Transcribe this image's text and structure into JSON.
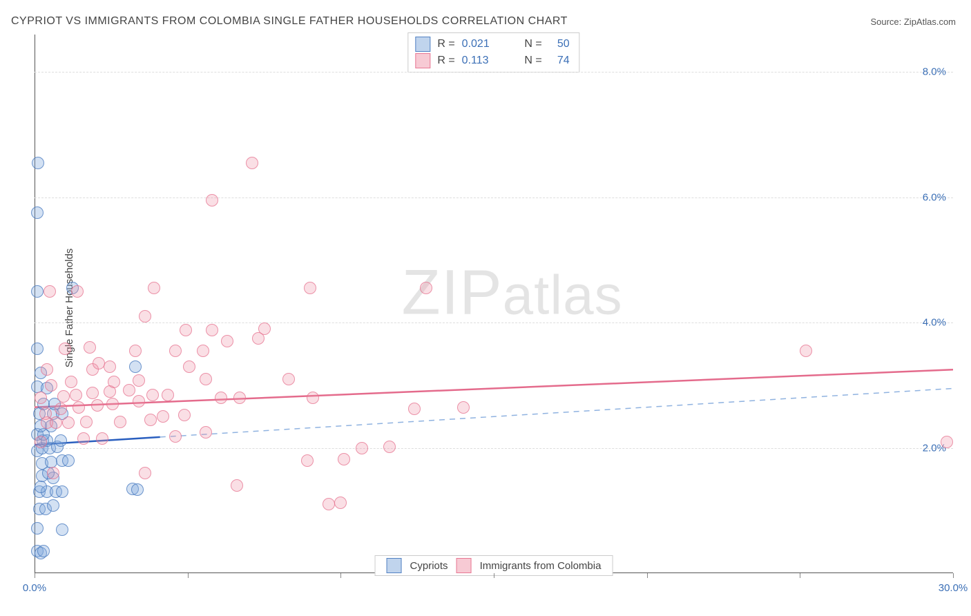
{
  "header": {
    "title": "CYPRIOT VS IMMIGRANTS FROM COLOMBIA SINGLE FATHER HOUSEHOLDS CORRELATION CHART",
    "source": "Source: ZipAtlas.com"
  },
  "watermark": {
    "part1": "ZIP",
    "part2": "atlas"
  },
  "chart": {
    "type": "scatter",
    "ylabel": "Single Father Households",
    "xlim": [
      0,
      30
    ],
    "ylim": [
      0,
      8.6
    ],
    "xtick_positions": [
      0,
      5,
      10,
      15,
      20,
      25,
      30
    ],
    "xtick_labels": {
      "0": "0.0%",
      "30": "30.0%"
    },
    "ytick_positions": [
      2,
      4,
      6,
      8
    ],
    "ytick_labels": {
      "2": "2.0%",
      "4": "4.0%",
      "6": "6.0%",
      "8": "8.0%"
    },
    "grid_color": "#dddddd",
    "background_color": "#ffffff",
    "axis_color": "#555555",
    "tick_label_color": "#3b6fb6",
    "marker_size": 18,
    "series": [
      {
        "name": "Cypriots",
        "key": "blue",
        "fill": "rgba(130,170,220,0.35)",
        "stroke": "rgba(70,120,190,0.75)",
        "trend": {
          "y0": 2.05,
          "y30": 2.95,
          "solid_xmax": 4.1,
          "solid_color": "#2a5fbf",
          "dash_color": "#8fb2e0",
          "width": 2.5
        },
        "R": "0.021",
        "N": "50",
        "points": [
          [
            0.1,
            0.35
          ],
          [
            0.2,
            0.32
          ],
          [
            0.3,
            0.35
          ],
          [
            0.1,
            0.72
          ],
          [
            0.9,
            0.7
          ],
          [
            0.15,
            1.02
          ],
          [
            0.35,
            1.02
          ],
          [
            0.6,
            1.08
          ],
          [
            0.15,
            1.3
          ],
          [
            0.4,
            1.3
          ],
          [
            0.7,
            1.3
          ],
          [
            0.9,
            1.3
          ],
          [
            0.2,
            1.38
          ],
          [
            3.2,
            1.35
          ],
          [
            3.35,
            1.33
          ],
          [
            0.25,
            1.55
          ],
          [
            0.6,
            1.52
          ],
          [
            0.45,
            1.6
          ],
          [
            0.25,
            1.75
          ],
          [
            0.55,
            1.78
          ],
          [
            0.9,
            1.8
          ],
          [
            1.1,
            1.8
          ],
          [
            0.1,
            1.95
          ],
          [
            0.25,
            2.0
          ],
          [
            0.5,
            2.0
          ],
          [
            0.75,
            2.02
          ],
          [
            0.28,
            2.12
          ],
          [
            0.4,
            2.12
          ],
          [
            0.85,
            2.12
          ],
          [
            0.1,
            2.22
          ],
          [
            0.3,
            2.22
          ],
          [
            0.2,
            2.35
          ],
          [
            0.55,
            2.35
          ],
          [
            0.15,
            2.55
          ],
          [
            0.6,
            2.55
          ],
          [
            0.9,
            2.55
          ],
          [
            0.3,
            2.7
          ],
          [
            0.65,
            2.7
          ],
          [
            0.1,
            2.98
          ],
          [
            0.4,
            2.95
          ],
          [
            0.2,
            3.2
          ],
          [
            3.3,
            3.3
          ],
          [
            0.1,
            3.58
          ],
          [
            0.1,
            4.5
          ],
          [
            1.25,
            4.55
          ],
          [
            0.1,
            5.75
          ],
          [
            0.12,
            6.55
          ]
        ]
      },
      {
        "name": "Immigrants from Colombia",
        "key": "pink",
        "fill": "rgba(240,150,170,0.30)",
        "stroke": "rgba(230,110,140,0.70)",
        "trend": {
          "y0": 2.65,
          "y30": 3.25,
          "solid_xmax": 30,
          "solid_color": "#e46b8c",
          "dash_color": "#e46b8c",
          "width": 2.5
        },
        "R": "0.113",
        "N": "74",
        "points": [
          [
            9.6,
            1.1
          ],
          [
            10.0,
            1.12
          ],
          [
            6.6,
            1.4
          ],
          [
            3.6,
            1.6
          ],
          [
            0.6,
            1.6
          ],
          [
            8.9,
            1.8
          ],
          [
            10.1,
            1.82
          ],
          [
            10.7,
            2.0
          ],
          [
            11.6,
            2.02
          ],
          [
            29.8,
            2.1
          ],
          [
            0.2,
            2.1
          ],
          [
            1.6,
            2.15
          ],
          [
            2.2,
            2.15
          ],
          [
            4.6,
            2.18
          ],
          [
            5.6,
            2.25
          ],
          [
            0.4,
            2.4
          ],
          [
            0.7,
            2.4
          ],
          [
            1.1,
            2.4
          ],
          [
            1.7,
            2.42
          ],
          [
            2.8,
            2.42
          ],
          [
            3.8,
            2.45
          ],
          [
            4.2,
            2.5
          ],
          [
            4.9,
            2.52
          ],
          [
            12.4,
            2.62
          ],
          [
            14.0,
            2.65
          ],
          [
            0.35,
            2.55
          ],
          [
            0.85,
            2.62
          ],
          [
            1.45,
            2.65
          ],
          [
            2.05,
            2.68
          ],
          [
            2.55,
            2.7
          ],
          [
            3.4,
            2.75
          ],
          [
            0.2,
            2.8
          ],
          [
            0.95,
            2.82
          ],
          [
            1.35,
            2.85
          ],
          [
            1.9,
            2.88
          ],
          [
            2.45,
            2.9
          ],
          [
            3.1,
            2.92
          ],
          [
            3.85,
            2.85
          ],
          [
            4.35,
            2.85
          ],
          [
            6.1,
            2.8
          ],
          [
            6.7,
            2.8
          ],
          [
            9.1,
            2.8
          ],
          [
            0.55,
            3.0
          ],
          [
            1.2,
            3.05
          ],
          [
            2.6,
            3.05
          ],
          [
            3.4,
            3.08
          ],
          [
            5.6,
            3.1
          ],
          [
            8.3,
            3.1
          ],
          [
            0.4,
            3.25
          ],
          [
            1.9,
            3.25
          ],
          [
            2.45,
            3.3
          ],
          [
            5.05,
            3.3
          ],
          [
            2.1,
            3.35
          ],
          [
            3.3,
            3.55
          ],
          [
            25.2,
            3.55
          ],
          [
            1.0,
            3.58
          ],
          [
            1.8,
            3.6
          ],
          [
            6.3,
            3.7
          ],
          [
            7.3,
            3.75
          ],
          [
            4.95,
            3.88
          ],
          [
            5.8,
            3.88
          ],
          [
            7.5,
            3.9
          ],
          [
            4.6,
            3.55
          ],
          [
            5.5,
            3.55
          ],
          [
            3.6,
            4.1
          ],
          [
            3.9,
            4.55
          ],
          [
            12.8,
            4.55
          ],
          [
            9.0,
            4.55
          ],
          [
            0.5,
            4.5
          ],
          [
            1.4,
            4.5
          ],
          [
            5.8,
            5.95
          ],
          [
            7.1,
            6.55
          ]
        ]
      }
    ],
    "legend_top": {
      "R_label": "R =",
      "N_label": "N ="
    },
    "legend_bottom": {
      "items": [
        "Cypriots",
        "Immigrants from Colombia"
      ]
    }
  }
}
